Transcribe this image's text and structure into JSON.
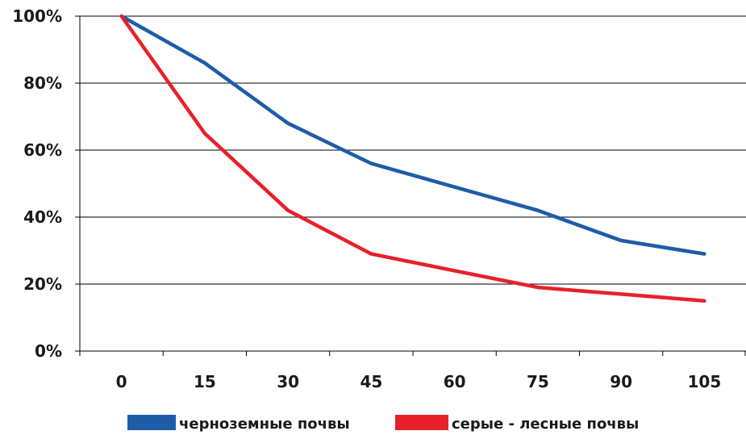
{
  "chart_data": {
    "type": "line",
    "categories": [
      "0",
      "15",
      "30",
      "45",
      "60",
      "75",
      "90",
      "105"
    ],
    "y_ticks": [
      "0%",
      "20%",
      "40%",
      "60%",
      "80%",
      "100%"
    ],
    "ylim": [
      0,
      100
    ],
    "grid": true,
    "legend_placement": "bottom",
    "series": [
      {
        "name": "черноземные почвы",
        "color": "#1f5ca8",
        "values": [
          100,
          86,
          68,
          56,
          49,
          42,
          33,
          29
        ]
      },
      {
        "name": "серые - лесные почвы",
        "color": "#e8202a",
        "values": [
          100,
          65,
          42,
          29,
          24,
          19,
          17,
          15
        ]
      }
    ]
  }
}
